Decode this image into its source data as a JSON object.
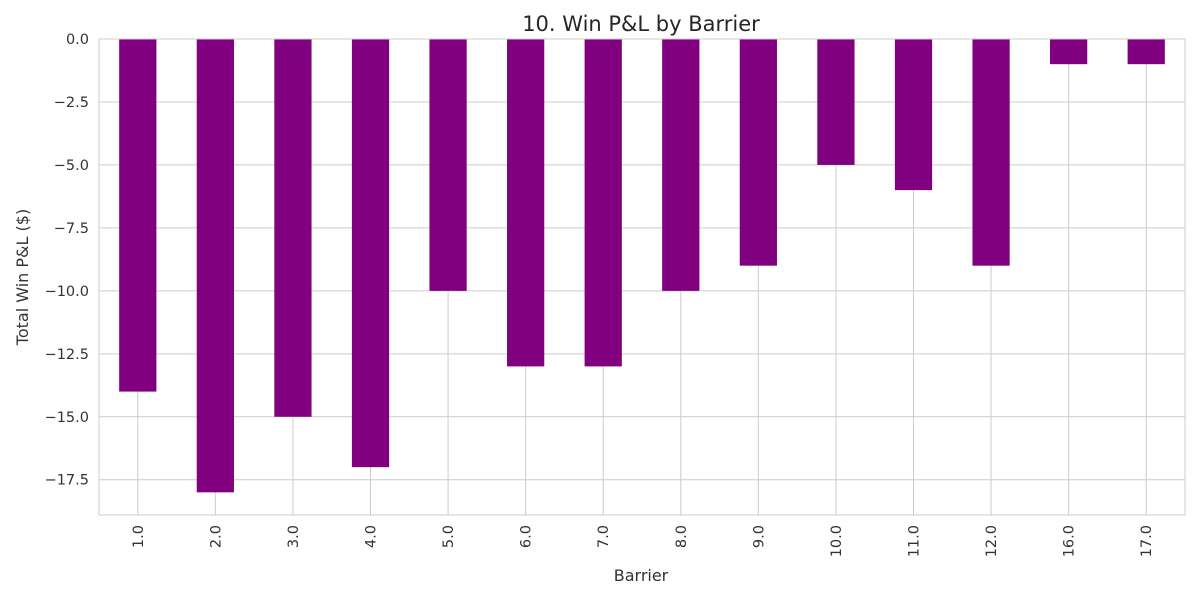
{
  "chart_data": {
    "type": "bar",
    "title": "10. Win P&L by Barrier",
    "xlabel": "Barrier",
    "ylabel": "Total Win P&L ($)",
    "categories": [
      "1.0",
      "2.0",
      "3.0",
      "4.0",
      "5.0",
      "6.0",
      "7.0",
      "8.0",
      "9.0",
      "10.0",
      "11.0",
      "12.0",
      "16.0",
      "17.0"
    ],
    "values": [
      -14,
      -18,
      -15,
      -17,
      -10,
      -13,
      -13,
      -10,
      -9,
      -5,
      -6,
      -9,
      -1,
      -1
    ],
    "ylim": [
      -18.9,
      0
    ],
    "yticks": [
      0,
      -2.5,
      -5,
      -7.5,
      -10,
      -12.5,
      -15,
      -17.5
    ],
    "ytick_labels": [
      "0.0",
      "−2.5",
      "−5.0",
      "−7.5",
      "−10.0",
      "−12.5",
      "−15.0",
      "−17.5"
    ],
    "grid": true,
    "bar_color": "#800080",
    "grid_color": "#cccccc"
  }
}
